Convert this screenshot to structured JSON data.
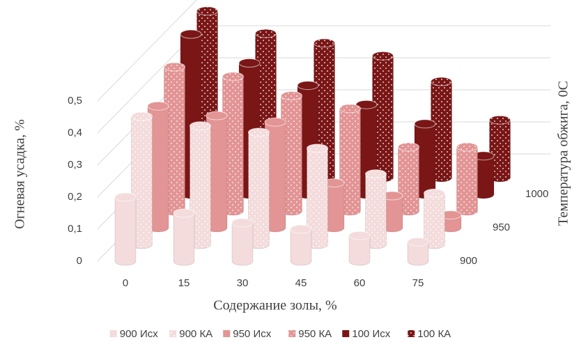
{
  "chart_data": {
    "type": "bar3d",
    "y_axis_title": "Огневая усадка, %",
    "x_axis_title": "Содержание золы, %",
    "z_axis_title": "Температура обжига, 0С",
    "categories": [
      "0",
      "15",
      "30",
      "45",
      "60",
      "75"
    ],
    "depth_categories": [
      "900",
      "950",
      "1000"
    ],
    "ylim": [
      0,
      0.5
    ],
    "yticks": [
      0,
      {
        "value": 0.1,
        "label": "0,1"
      },
      {
        "value": 0.2,
        "label": "0,2"
      },
      {
        "value": 0.3,
        "label": "0,3"
      },
      {
        "value": 0.4,
        "label": "0,4"
      },
      {
        "value": 0.5,
        "label": "0,5"
      }
    ],
    "grid": true,
    "legend": "bottom",
    "series": [
      {
        "name": "900 Исх",
        "color": "#f4dcdc",
        "pattern": "solid",
        "values": [
          0.2,
          0.15,
          0.12,
          0.1,
          0.08,
          0.06
        ]
      },
      {
        "name": "900 КА",
        "color": "#f4dcdc",
        "pattern": "dots",
        "values": [
          0.4,
          0.37,
          0.35,
          0.3,
          0.22,
          0.16
        ]
      },
      {
        "name": "950  Исх",
        "color": "#e39494",
        "pattern": "solid",
        "values": [
          0.38,
          0.35,
          0.33,
          0.14,
          0.1,
          0.04
        ]
      },
      {
        "name": "950 КА",
        "color": "#e39494",
        "pattern": "dots",
        "values": [
          0.45,
          0.42,
          0.36,
          0.32,
          0.2,
          0.2
        ]
      },
      {
        "name": "100  Исх",
        "color": "#7a1616",
        "pattern": "solid",
        "values": [
          0.5,
          0.41,
          0.34,
          0.28,
          0.22,
          0.12
        ]
      },
      {
        "name": "100 КА",
        "color": "#7a1616",
        "pattern": "dots",
        "values": [
          0.52,
          0.45,
          0.42,
          0.38,
          0.3,
          0.18
        ]
      }
    ]
  }
}
